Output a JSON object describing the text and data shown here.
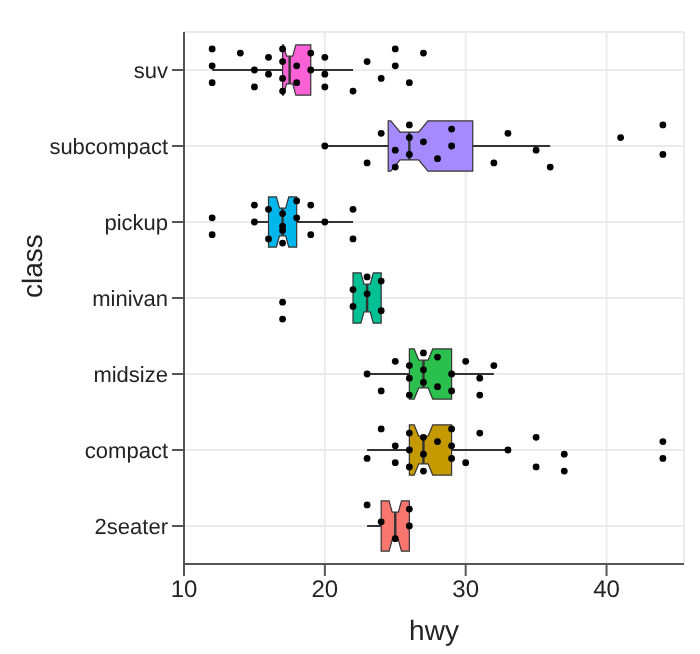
{
  "chart_data": {
    "type": "box",
    "orientation": "horizontal",
    "xlabel": "hwy",
    "ylabel": "class",
    "categories": [
      "suv",
      "subcompact",
      "pickup",
      "minivan",
      "midsize",
      "compact",
      "2seater"
    ],
    "boxes": [
      {
        "low": 12,
        "q1": 17,
        "median": 17.5,
        "q3": 19,
        "high": 22
      },
      {
        "low": 20,
        "q1": 24.5,
        "median": 26,
        "q3": 30.5,
        "high": 36
      },
      {
        "low": 15,
        "q1": 16,
        "median": 17,
        "q3": 18,
        "high": 22
      },
      {
        "low": 22,
        "q1": 22,
        "median": 23,
        "q3": 24,
        "high": 24
      },
      {
        "low": 23,
        "q1": 26,
        "median": 27,
        "q3": 29,
        "high": 32
      },
      {
        "low": 23,
        "q1": 26,
        "median": 27,
        "q3": 29,
        "high": 33
      },
      {
        "low": 23,
        "q1": 24,
        "median": 25,
        "q3": 26,
        "high": 26
      }
    ],
    "colors": [
      "#fb61d7",
      "#a58aff",
      "#00b6eb",
      "#00c094",
      "#2bbf4e",
      "#c49a00",
      "#f8766d"
    ],
    "series": [
      {
        "type": "scatter",
        "color": "#000000",
        "x": [
          "suv",
          "suv",
          "suv",
          "suv",
          "suv",
          "suv",
          "suv",
          "suv",
          "suv",
          "suv",
          "suv",
          "suv",
          "suv",
          "suv",
          "suv",
          "suv",
          "suv",
          "suv",
          "suv",
          "suv",
          "suv",
          "suv",
          "suv",
          "suv",
          "suv",
          "suv",
          "subcompact",
          "subcompact",
          "subcompact",
          "subcompact",
          "subcompact",
          "subcompact",
          "subcompact",
          "subcompact",
          "subcompact",
          "subcompact",
          "subcompact",
          "subcompact",
          "subcompact",
          "subcompact",
          "subcompact",
          "subcompact",
          "subcompact",
          "subcompact",
          "subcompact",
          "pickup",
          "pickup",
          "pickup",
          "pickup",
          "pickup",
          "pickup",
          "pickup",
          "pickup",
          "pickup",
          "pickup",
          "pickup",
          "pickup",
          "pickup",
          "pickup",
          "pickup",
          "pickup",
          "pickup",
          "minivan",
          "minivan",
          "minivan",
          "minivan",
          "minivan",
          "minivan",
          "minivan",
          "minivan",
          "midsize",
          "midsize",
          "midsize",
          "midsize",
          "midsize",
          "midsize",
          "midsize",
          "midsize",
          "midsize",
          "midsize",
          "midsize",
          "midsize",
          "midsize",
          "midsize",
          "midsize",
          "midsize",
          "midsize",
          "compact",
          "compact",
          "compact",
          "compact",
          "compact",
          "compact",
          "compact",
          "compact",
          "compact",
          "compact",
          "compact",
          "compact",
          "compact",
          "compact",
          "compact",
          "compact",
          "compact",
          "compact",
          "compact",
          "compact",
          "compact",
          "compact",
          "compact",
          "2seater",
          "2seater",
          "2seater",
          "2seater",
          "2seater"
        ],
        "values": [
          12,
          12,
          12,
          14,
          15,
          15,
          16,
          16,
          17,
          17,
          17,
          17,
          18,
          18,
          19,
          19,
          20,
          20,
          20,
          22,
          23,
          24,
          25,
          25,
          26,
          27,
          20,
          23,
          24,
          25,
          25,
          26,
          26,
          26,
          27,
          28,
          29,
          29,
          32,
          33,
          35,
          36,
          41,
          44,
          44,
          12,
          12,
          15,
          15,
          16,
          16,
          17,
          17,
          17,
          17,
          18,
          18,
          19,
          19,
          20,
          22,
          22,
          17,
          17,
          22,
          22,
          23,
          23,
          24,
          24,
          23,
          24,
          25,
          26,
          26,
          26,
          27,
          27,
          27,
          28,
          28,
          29,
          29,
          30,
          31,
          31,
          32,
          23,
          24,
          25,
          25,
          26,
          26,
          26,
          27,
          27,
          27,
          28,
          29,
          29,
          29,
          30,
          31,
          33,
          35,
          35,
          37,
          37,
          44,
          44,
          23,
          24,
          25,
          26,
          26
        ]
      }
    ],
    "xlim": [
      10,
      45.5
    ],
    "xticks": [
      10,
      20,
      30,
      40
    ],
    "grid": true
  }
}
